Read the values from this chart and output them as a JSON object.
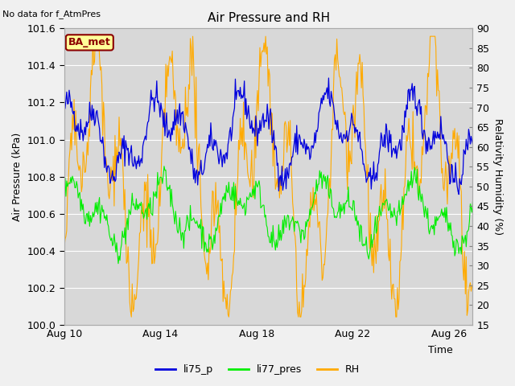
{
  "title": "Air Pressure and RH",
  "subtitle": "No data for f_AtmPres",
  "xlabel": "Time",
  "ylabel_left": "Air Pressure (kPa)",
  "ylabel_right": "Relativity Humidity (%)",
  "ylim_left": [
    100.0,
    101.6
  ],
  "ylim_right": [
    15,
    90
  ],
  "yticks_left": [
    100.0,
    100.2,
    100.4,
    100.6,
    100.8,
    101.0,
    101.2,
    101.4,
    101.6
  ],
  "yticks_right": [
    15,
    20,
    25,
    30,
    35,
    40,
    45,
    50,
    55,
    60,
    65,
    70,
    75,
    80,
    85,
    90
  ],
  "xtick_labels": [
    "Aug 10",
    "Aug 14",
    "Aug 18",
    "Aug 22",
    "Aug 26"
  ],
  "xtick_positions": [
    0,
    4,
    8,
    12,
    16
  ],
  "xlim": [
    0,
    17
  ],
  "fig_bg_color": "#f0f0f0",
  "plot_bg_color": "#d8d8d8",
  "line_blue": "#0000dd",
  "line_green": "#00ee00",
  "line_orange": "#ffaa00",
  "legend_labels": [
    "li75_p",
    "li77_pres",
    "RH"
  ],
  "ba_met_color": "#8b0000",
  "ba_met_bg": "#ffff99",
  "seed": 42,
  "title_fontsize": 11,
  "axis_fontsize": 9,
  "tick_fontsize": 9
}
